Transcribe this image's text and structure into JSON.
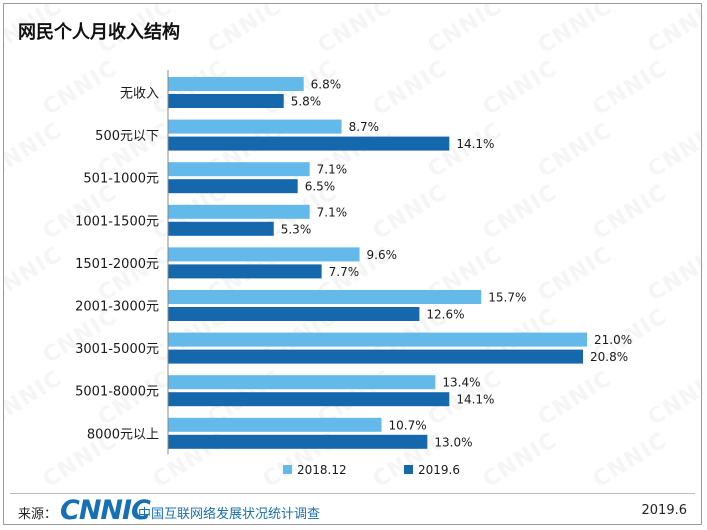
{
  "title": "网民个人月收入结构",
  "footer": {
    "source_label": "来源：",
    "logo_text": "CNNIC",
    "org_name": "中国互联网络发展状况统计调查",
    "date": "2019.6"
  },
  "colors": {
    "series_2018": "#62b9ea",
    "series_2019": "#1668ad",
    "axis": "#888888"
  },
  "chart_data": {
    "type": "bar",
    "orientation": "horizontal",
    "title": "网民个人月收入结构",
    "categories": [
      "无收入",
      "500元以下",
      "501-1000元",
      "1001-1500元",
      "1501-2000元",
      "2001-3000元",
      "3001-5000元",
      "5001-8000元",
      "8000元以上"
    ],
    "series": [
      {
        "name": "2018.12",
        "values": [
          6.8,
          8.7,
          7.1,
          7.1,
          9.6,
          15.7,
          21.0,
          13.4,
          10.7
        ],
        "labels": [
          "6.8%",
          "8.7%",
          "7.1%",
          "7.1%",
          "9.6%",
          "15.7%",
          "21.0%",
          "13.4%",
          "10.7%"
        ]
      },
      {
        "name": "2019.6",
        "values": [
          5.8,
          14.1,
          6.5,
          5.3,
          7.7,
          12.6,
          20.8,
          14.1,
          13.0
        ],
        "labels": [
          "5.8%",
          "14.1%",
          "6.5%",
          "5.3%",
          "7.7%",
          "12.6%",
          "20.8%",
          "14.1%",
          "13.0%"
        ]
      }
    ],
    "xlim": [
      0,
      21
    ],
    "value_unit": "%",
    "legend_position": "bottom",
    "grid": false
  }
}
